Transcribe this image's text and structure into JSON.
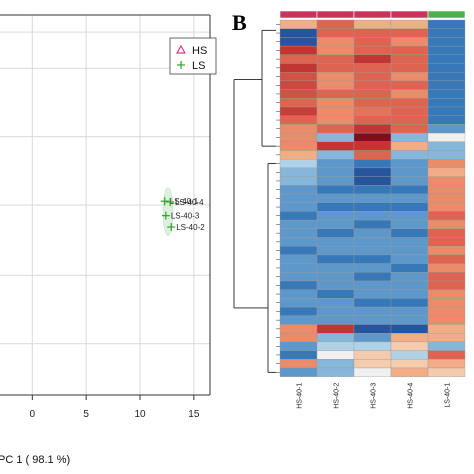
{
  "chart_data": [
    {
      "type": "scatter",
      "xlabel": "PC 1 ( 98.1 %)",
      "xlim": [
        -3,
        16.5
      ],
      "ylim": [
        0,
        1
      ],
      "x_ticks": [
        0,
        5,
        10,
        15
      ],
      "legend": {
        "placement": "top-right",
        "entries": [
          {
            "name": "HS",
            "marker": "triangle",
            "color": "#d63c7c"
          },
          {
            "name": "LS",
            "marker": "plus",
            "color": "#33a02c"
          }
        ]
      },
      "series": [
        {
          "name": "LS",
          "points": [
            {
              "label": "LS-40-1",
              "x": 12.3,
              "y": 0.51
            },
            {
              "label": "LS-40-4",
              "x": 12.8,
              "y": 0.508
            },
            {
              "label": "LS-40-3",
              "x": 12.4,
              "y": 0.472
            },
            {
              "label": "LS-40-2",
              "x": 12.9,
              "y": 0.442
            }
          ]
        }
      ],
      "grid": true
    },
    {
      "type": "heatmap",
      "panel": "B",
      "columns": [
        "HS-40-1",
        "HS-40-2",
        "HS-40-3",
        "HS-40-4",
        "LS-40-1"
      ],
      "group_colors": [
        "#c7345c",
        "#c7345c",
        "#c7345c",
        "#c7345c",
        "#4daf4a"
      ],
      "values": [
        [
          1,
          2,
          1,
          1,
          -2
        ],
        [
          -2.5,
          2,
          2,
          2,
          -2
        ],
        [
          -2.5,
          1.5,
          2,
          1.5,
          -2
        ],
        [
          2.5,
          1.5,
          2,
          2,
          -2
        ],
        [
          2,
          2,
          2.5,
          2,
          -2
        ],
        [
          2.5,
          2,
          2,
          2,
          -2
        ],
        [
          2.2,
          1.5,
          2,
          1.5,
          -2
        ],
        [
          2.3,
          1.5,
          2,
          2,
          -2
        ],
        [
          2.2,
          2,
          2,
          1.5,
          -2
        ],
        [
          2,
          1.5,
          2,
          2,
          -2
        ],
        [
          2.4,
          1.5,
          1.8,
          2,
          -2
        ],
        [
          2,
          1.5,
          2,
          2,
          -2
        ],
        [
          1.5,
          2,
          2.5,
          2,
          -1.5
        ],
        [
          1.5,
          -1,
          3,
          -1,
          0
        ],
        [
          1.5,
          2.5,
          2.5,
          1,
          -1
        ],
        [
          1,
          -1,
          2,
          -1,
          -1
        ],
        [
          -0.5,
          -1.5,
          -2,
          -1.5,
          1.5
        ],
        [
          -1,
          -1.5,
          -2.5,
          -1.5,
          1
        ],
        [
          -1,
          -1.5,
          -2.5,
          -1.5,
          1.5
        ],
        [
          -1.5,
          -2,
          -2,
          -2,
          1.5
        ],
        [
          -1.5,
          -1.5,
          -1.5,
          -1.5,
          1.5
        ],
        [
          -1.5,
          -2,
          -2,
          -2,
          1.5
        ],
        [
          -2,
          -1.5,
          -1.5,
          -1.5,
          2
        ],
        [
          -1.5,
          -1.5,
          -2,
          -1.5,
          1.5
        ],
        [
          -1.5,
          -2,
          -1.5,
          -2,
          2
        ],
        [
          -1.5,
          -1.5,
          -1.5,
          -1.5,
          2
        ],
        [
          -2,
          -1.5,
          -1.5,
          -1.5,
          1.5
        ],
        [
          -1.5,
          -2,
          -2,
          -1.5,
          2
        ],
        [
          -1.5,
          -1.5,
          -1.5,
          -2,
          1.5
        ],
        [
          -1.5,
          -1.5,
          -2,
          -1.5,
          2
        ],
        [
          -2,
          -1.5,
          -1.5,
          -1.5,
          2
        ],
        [
          -1.5,
          -2,
          -1.5,
          -1.5,
          1.5
        ],
        [
          -1.5,
          -1.5,
          -2,
          -2,
          1.5
        ],
        [
          -2,
          -1.5,
          -1.5,
          -1.5,
          1.5
        ],
        [
          -1.5,
          -1.5,
          -1.5,
          -1.5,
          1.5
        ],
        [
          1.5,
          2.5,
          -2.5,
          -2.5,
          1
        ],
        [
          1.5,
          -1,
          -1.5,
          1,
          1
        ],
        [
          -1.5,
          -0.5,
          -0.5,
          0.5,
          -1
        ],
        [
          -2,
          0,
          0.5,
          -0.5,
          2
        ],
        [
          1.5,
          -1,
          0.5,
          0.5,
          1
        ],
        [
          -1.5,
          -1,
          0,
          1,
          0.5
        ]
      ]
    }
  ],
  "panels": {
    "b_letter": "B"
  }
}
